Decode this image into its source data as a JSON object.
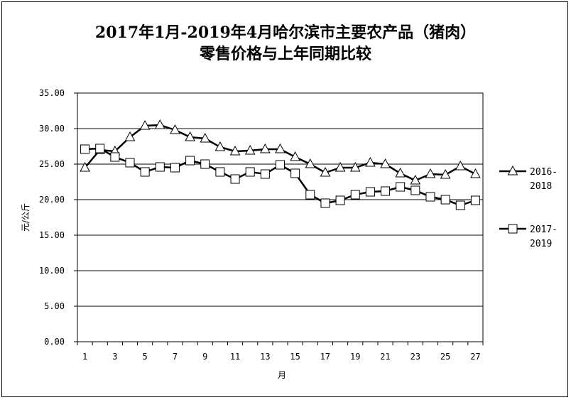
{
  "chart_data": {
    "type": "line",
    "title_line1": "2017年1月-2019年4月哈尔滨市主要农产品（猪肉）",
    "title_line2": "零售价格与上年同期比较",
    "xlabel": "月",
    "ylabel": "元/公斤",
    "x": [
      1,
      2,
      3,
      4,
      5,
      6,
      7,
      8,
      9,
      10,
      11,
      12,
      13,
      14,
      15,
      16,
      17,
      18,
      19,
      20,
      21,
      22,
      23,
      24,
      25,
      26,
      27
    ],
    "x_tick_labels": [
      "1",
      "3",
      "5",
      "7",
      "9",
      "11",
      "13",
      "15",
      "17",
      "19",
      "21",
      "23",
      "25",
      "27"
    ],
    "y_tick_labels": [
      "0.00",
      "5.00",
      "10.00",
      "15.00",
      "20.00",
      "25.00",
      "30.00",
      "35.00"
    ],
    "ylim": [
      0,
      35
    ],
    "grid": "horizontal",
    "legend_position": "right",
    "series": [
      {
        "name": "2016-2018",
        "name_line1": "2016-",
        "name_line2": "2018",
        "marker": "triangle",
        "values": [
          24.5,
          27.0,
          26.8,
          28.8,
          30.4,
          30.5,
          29.8,
          28.8,
          28.6,
          27.4,
          26.8,
          26.9,
          27.1,
          27.1,
          26.0,
          25.0,
          23.8,
          24.5,
          24.5,
          25.2,
          25.0,
          23.7,
          22.7,
          23.6,
          23.5,
          24.7,
          23.6
        ]
      },
      {
        "name": "2017-2019",
        "name_line1": "2017-",
        "name_line2": "2019",
        "marker": "square",
        "values": [
          27.1,
          27.2,
          26.0,
          25.2,
          23.9,
          24.6,
          24.5,
          25.5,
          25.0,
          23.9,
          22.9,
          23.9,
          23.6,
          24.9,
          23.7,
          20.7,
          19.5,
          19.9,
          20.7,
          21.1,
          21.2,
          21.8,
          21.3,
          20.4,
          20.0,
          19.2,
          19.9
        ]
      }
    ]
  }
}
